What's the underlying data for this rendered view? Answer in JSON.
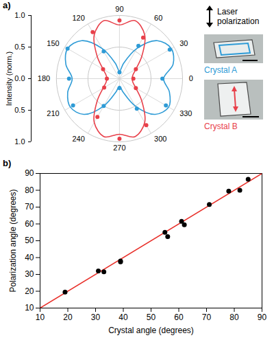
{
  "chart_data": [
    {
      "type": "polar",
      "panel": "a)",
      "ylabel": "Intensity (norm.)",
      "rlim": [
        0,
        1
      ],
      "rticks": [
        {
          "value": 1,
          "label": "1.0"
        },
        {
          "value": 0.5,
          "label": "0.5"
        },
        {
          "value": 0,
          "label": "0.0"
        }
      ],
      "thetaticks": [
        0,
        30,
        60,
        90,
        120,
        150,
        180,
        210,
        240,
        270,
        300,
        330
      ],
      "grid": true,
      "annotations": [
        "Laser polarization"
      ],
      "series": [
        {
          "name": "Crystal A",
          "color": "#2e9bd6",
          "theta": [
            0,
            30,
            60,
            90,
            120,
            150,
            180,
            210,
            240,
            270,
            300,
            330
          ],
          "values": [
            0.68,
            0.92,
            0.6,
            0.1,
            0.5,
            0.95,
            0.8,
            0.85,
            0.5,
            0.15,
            0.55,
            0.85
          ],
          "fit": {
            "theta": [
              0,
              15,
              30,
              45,
              60,
              75,
              90,
              105,
              120,
              135,
              150,
              165,
              180,
              195,
              210,
              225,
              240,
              255,
              270,
              285,
              300,
              315,
              330,
              345
            ],
            "values": [
              0.7,
              0.88,
              0.95,
              0.85,
              0.55,
              0.25,
              0.12,
              0.25,
              0.55,
              0.85,
              0.95,
              0.88,
              0.75,
              0.85,
              0.9,
              0.8,
              0.5,
              0.22,
              0.12,
              0.22,
              0.5,
              0.8,
              0.9,
              0.82
            ]
          }
        },
        {
          "name": "Crystal B",
          "color": "#e8404a",
          "theta": [
            0,
            30,
            60,
            90,
            120,
            150,
            180,
            210,
            240,
            270,
            300,
            330
          ],
          "values": [
            0.22,
            0.3,
            0.75,
            0.92,
            0.85,
            0.3,
            0.2,
            0.28,
            0.7,
            0.95,
            0.85,
            0.3
          ],
          "fit": {
            "theta": [
              0,
              15,
              30,
              45,
              60,
              75,
              90,
              105,
              120,
              135,
              150,
              165,
              180,
              195,
              210,
              225,
              240,
              255,
              270,
              285,
              300,
              315,
              330,
              345
            ],
            "values": [
              0.2,
              0.22,
              0.3,
              0.5,
              0.8,
              0.95,
              0.85,
              0.95,
              0.8,
              0.5,
              0.3,
              0.22,
              0.2,
              0.22,
              0.3,
              0.5,
              0.8,
              0.95,
              0.88,
              0.95,
              0.8,
              0.5,
              0.3,
              0.22
            ]
          }
        }
      ]
    },
    {
      "type": "scatter",
      "panel": "b)",
      "xlabel": "Crystal angle (degrees)",
      "ylabel": "Polarization angle (degrees)",
      "xlim": [
        10,
        90
      ],
      "ylim": [
        10,
        90
      ],
      "xticks": [
        10,
        20,
        30,
        40,
        50,
        60,
        70,
        80,
        90
      ],
      "yticks": [
        10,
        20,
        30,
        40,
        50,
        60,
        70,
        80,
        90
      ],
      "x": [
        19,
        31,
        33,
        39,
        39,
        55,
        56,
        61,
        62,
        71,
        78,
        82,
        85
      ],
      "values": [
        19.5,
        32,
        31.5,
        37.5,
        38,
        55,
        52.5,
        61.5,
        59.5,
        71.5,
        79.5,
        80,
        86.5
      ],
      "color": "#000000",
      "marker": "circle",
      "fit": {
        "x": [
          10,
          90
        ],
        "values": [
          10,
          90
        ],
        "color": "#e8302a"
      }
    }
  ]
}
